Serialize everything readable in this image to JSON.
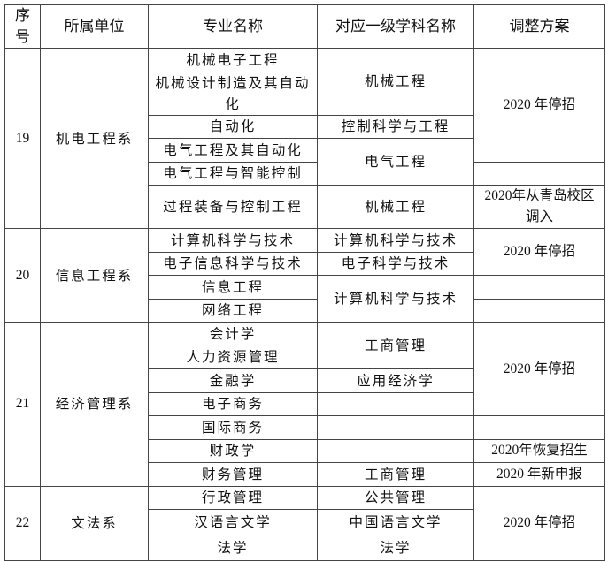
{
  "header": [
    "序号",
    "所属单位",
    "专业名称",
    "对应一级学科名称",
    "调整方案"
  ],
  "g19": {
    "id": "19",
    "unit": "机电工程系",
    "majors": [
      "机械电子工程",
      "机械设计制造及其自动化",
      "自动化",
      "电气工程及其自动化",
      "电气工程与智能控制",
      "过程装备与控制工程"
    ],
    "disciplines": [
      "机械工程",
      "控制科学与工程",
      "电气工程",
      "机械工程"
    ],
    "plans": [
      "2020 年停招",
      "",
      "2020年从青岛校区调入"
    ]
  },
  "g20": {
    "id": "20",
    "unit": "信息工程系",
    "majors": [
      "计算机科学与技术",
      "电子信息科学与技术",
      "信息工程",
      "网络工程"
    ],
    "disciplines": [
      "计算机科学与技术",
      "电子科学与技术",
      "计算机科学与技术"
    ],
    "plans": [
      "2020 年停招",
      "",
      ""
    ]
  },
  "g21": {
    "id": "21",
    "unit": "经济管理系",
    "majors": [
      "会计学",
      "人力资源管理",
      "金融学",
      "电子商务",
      "国际商务",
      "财政学",
      "财务管理"
    ],
    "disciplines": [
      "工商管理",
      "应用经济学",
      "",
      "",
      "",
      "工商管理"
    ],
    "plans": [
      "2020 年停招",
      "",
      "2020年恢复招生",
      "2020 年新申报"
    ]
  },
  "g22": {
    "id": "22",
    "unit": "文法系",
    "majors": [
      "行政管理",
      "汉语言文学",
      "法学"
    ],
    "disciplines": [
      "公共管理",
      "中国语言文学",
      "法学"
    ],
    "plans": [
      "2020 年停招"
    ]
  }
}
